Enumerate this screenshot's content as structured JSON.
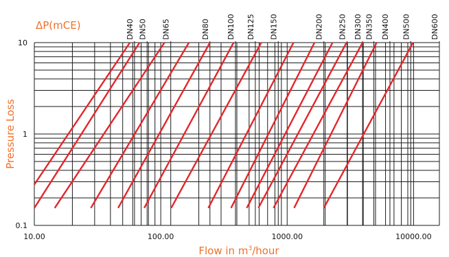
{
  "chart_data": {
    "type": "line",
    "title": "ΔP(mCE)",
    "xlabel": "Flow in m³/hour",
    "ylabel": "Pressure Loss",
    "x_scale": "log",
    "y_scale": "log",
    "xlim": [
      10,
      16000
    ],
    "ylim": [
      0.1,
      10
    ],
    "x_tick_labels": [
      "10.00",
      "100.00",
      "1000.00",
      "10000.00"
    ],
    "y_tick_labels": [
      "10",
      "1",
      "0.1"
    ],
    "colors": {
      "curves": "#e3262b",
      "labels": "#f0702a",
      "grid": "#1a1a1a"
    },
    "dn_labels": [
      {
        "label": "DN40",
        "x": 62
      },
      {
        "label": "DN50",
        "x": 78
      },
      {
        "label": "DN65",
        "x": 120
      },
      {
        "label": "DN80",
        "x": 245
      },
      {
        "label": "DN100",
        "x": 390
      },
      {
        "label": "DN125",
        "x": 560
      },
      {
        "label": "DN150",
        "x": 850
      },
      {
        "label": "DN200",
        "x": 1950
      },
      {
        "label": "DN250",
        "x": 2980
      },
      {
        "label": "DN300",
        "x": 3950
      },
      {
        "label": "DN350",
        "x": 4850
      },
      {
        "label": "DN400",
        "x": 6500
      },
      {
        "label": "DN500",
        "x": 9500
      },
      {
        "label": "DN600",
        "x": 16000
      }
    ],
    "series": [
      {
        "x": [
          10,
          57
        ],
        "y": [
          0.28,
          10
        ]
      },
      {
        "x": [
          10,
          68
        ],
        "y": [
          0.155,
          10
        ]
      },
      {
        "x": [
          14.5,
          107
        ],
        "y": [
          0.155,
          10
        ]
      },
      {
        "x": [
          28,
          167
        ],
        "y": [
          0.155,
          10
        ]
      },
      {
        "x": [
          46,
          245
        ],
        "y": [
          0.155,
          10
        ]
      },
      {
        "x": [
          74,
          377
        ],
        "y": [
          0.155,
          10
        ]
      },
      {
        "x": [
          121,
          624
        ],
        "y": [
          0.155,
          10
        ]
      },
      {
        "x": [
          238,
          1122
        ],
        "y": [
          0.155,
          10
        ]
      },
      {
        "x": [
          360,
          1645
        ],
        "y": [
          0.155,
          10
        ]
      },
      {
        "x": [
          479,
          2285
        ],
        "y": [
          0.155,
          10
        ]
      },
      {
        "x": [
          592,
          2950
        ],
        "y": [
          0.155,
          10
        ]
      },
      {
        "x": [
          780,
          3950
        ],
        "y": [
          0.155,
          10
        ]
      },
      {
        "x": [
          1135,
          5100
        ],
        "y": [
          0.155,
          10
        ]
      },
      {
        "x": [
          1950,
          9900
        ],
        "y": [
          0.155,
          10
        ]
      }
    ]
  }
}
